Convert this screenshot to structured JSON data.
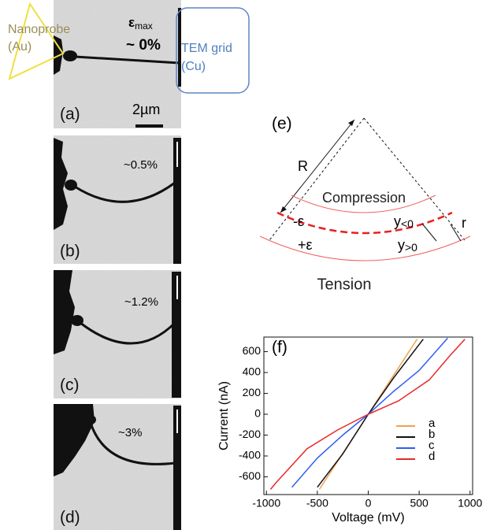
{
  "panels": [
    {
      "label": "(a)",
      "strain": "~ 0%"
    },
    {
      "label": "(b)",
      "strain": "~0.5%"
    },
    {
      "label": "(c)",
      "strain": "~1.2%"
    },
    {
      "label": "(d)",
      "strain": "~3%"
    }
  ],
  "panel_a": {
    "strain_symbol": "ε",
    "strain_sub": "max",
    "probe": "Nanoprobe",
    "probe_material": "(Au)",
    "grid": "TEM grid",
    "grid_material": "(Cu)",
    "scale": "2µm"
  },
  "diagram": {
    "label": "(e)",
    "radius": "R",
    "top": "Compression",
    "bottom": "Tension",
    "minus": "-ε",
    "plus": "+ε",
    "y_neg": "y",
    "y_neg_sub": "<0",
    "y_pos": "y",
    "y_pos_sub": ">0",
    "r": "r"
  },
  "chart_data": {
    "type": "line",
    "panel_label": "(f)",
    "x_label": "Voltage (mV)",
    "y_label": "Current (nA)",
    "xlim": [
      -1025,
      1025
    ],
    "ylim": [
      -770,
      740
    ],
    "xticks": [
      -1000,
      -500,
      0,
      500,
      1000
    ],
    "yticks": [
      -600,
      -400,
      -200,
      0,
      200,
      400,
      600
    ],
    "series": [
      {
        "name": "a",
        "color": "#f0a050",
        "x": [
          -480,
          -240,
          0,
          240,
          480
        ],
        "values": [
          -720,
          -360,
          0,
          360,
          720
        ]
      },
      {
        "name": "b",
        "color": "#111111",
        "x": [
          -500,
          -250,
          0,
          250,
          540
        ],
        "values": [
          -700,
          -380,
          0,
          350,
          720
        ]
      },
      {
        "name": "c",
        "color": "#2f5ef0",
        "x": [
          -750,
          -500,
          -250,
          0,
          250,
          500,
          780
        ],
        "values": [
          -700,
          -420,
          -200,
          0,
          220,
          420,
          730
        ]
      },
      {
        "name": "d",
        "color": "#e8282a",
        "x": [
          -960,
          -900,
          -600,
          -300,
          0,
          300,
          600,
          800,
          950
        ],
        "values": [
          -720,
          -650,
          -330,
          -150,
          0,
          130,
          330,
          560,
          720
        ]
      }
    ]
  }
}
